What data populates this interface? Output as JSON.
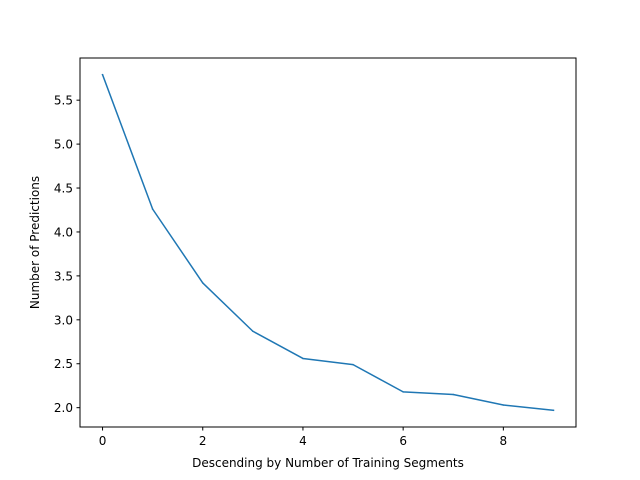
{
  "chart_data": {
    "type": "line",
    "title": "",
    "xlabel": "Descending by Number of Training Segments",
    "ylabel": "Number of Predictions",
    "x": [
      0,
      1,
      2,
      3,
      4,
      5,
      6,
      7,
      8,
      9
    ],
    "series": [
      {
        "values": [
          5.79,
          4.26,
          3.42,
          2.87,
          2.56,
          2.49,
          2.18,
          2.15,
          2.03,
          1.97
        ],
        "color": "#1f77b4"
      }
    ],
    "xlim": [
      -0.45,
      9.45
    ],
    "ylim": [
      1.78,
      5.98
    ],
    "xticks": [
      0,
      2,
      4,
      6,
      8
    ],
    "xtick_labels": [
      "0",
      "2",
      "4",
      "6",
      "8"
    ],
    "yticks": [
      2.0,
      2.5,
      3.0,
      3.5,
      4.0,
      4.5,
      5.0,
      5.5
    ],
    "ytick_labels": [
      "2.0",
      "2.5",
      "3.0",
      "3.5",
      "4.0",
      "4.5",
      "5.0",
      "5.5"
    ],
    "grid": false,
    "legend": false
  }
}
